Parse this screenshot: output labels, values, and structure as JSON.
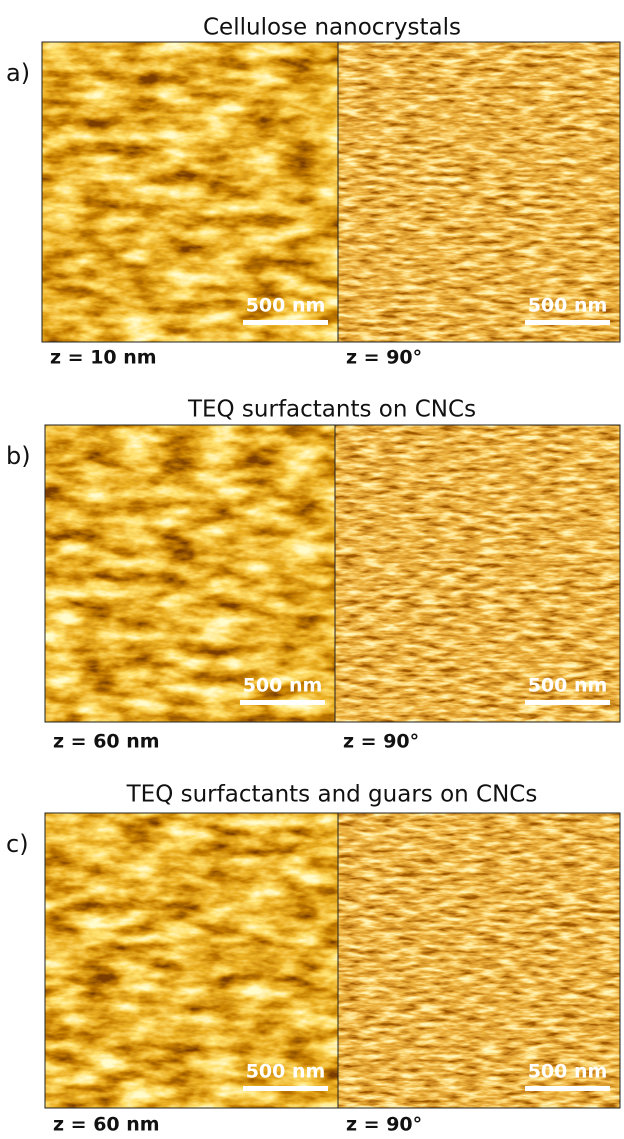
{
  "panels": [
    {
      "label": "a)",
      "title": "Cellulose nanocrystals",
      "images": [
        {
          "scale_bar": "500 nm",
          "caption": "z = 10 nm"
        },
        {
          "scale_bar": "500 nm",
          "caption": "z = 90°"
        }
      ]
    },
    {
      "label": "b)",
      "title": "TEQ surfactants on CNCs",
      "images": [
        {
          "scale_bar": "500 nm",
          "caption": "z = 60 nm"
        },
        {
          "scale_bar": "500 nm",
          "caption": "z = 90°"
        }
      ]
    },
    {
      "label": "c)",
      "title": "TEQ surfactants and guars on CNCs",
      "images": [
        {
          "scale_bar": "500 nm",
          "caption": "z = 60 nm"
        },
        {
          "scale_bar": "500 nm",
          "caption": "z = 90°"
        }
      ]
    }
  ]
}
